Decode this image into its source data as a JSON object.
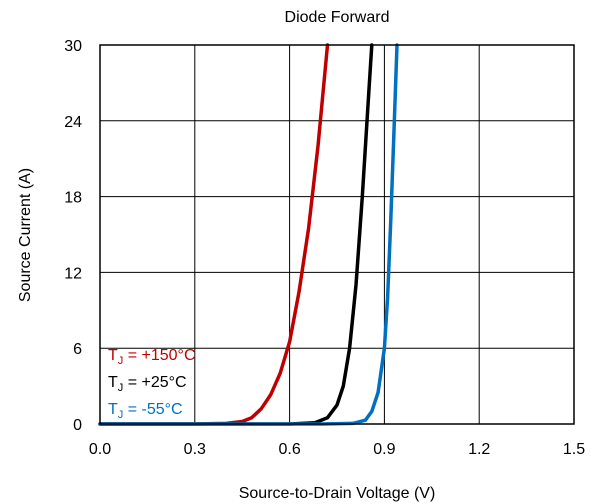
{
  "chart_data": {
    "type": "line",
    "title": "Diode Forward",
    "xlabel": "Source-to-Drain Voltage (V)",
    "ylabel": "Source Current (A)",
    "xlim": [
      0,
      1.5
    ],
    "ylim": [
      0,
      30
    ],
    "xticks": [
      "0.0",
      "0.3",
      "0.6",
      "0.9",
      "1.2",
      "1.5"
    ],
    "yticks": [
      "0",
      "6",
      "12",
      "18",
      "24",
      "30"
    ],
    "grid": true,
    "legend_position": "bottom-left",
    "series": [
      {
        "name": "T_J = +150°C",
        "label_main": "T",
        "label_sub": "J",
        "label_rest": " = +150°C",
        "color": "#c00000",
        "x": [
          0.0,
          0.3,
          0.4,
          0.45,
          0.48,
          0.51,
          0.54,
          0.57,
          0.6,
          0.63,
          0.66,
          0.69,
          0.72
        ],
        "y": [
          0.0,
          0.0,
          0.05,
          0.2,
          0.5,
          1.2,
          2.3,
          4.0,
          6.5,
          10.5,
          15.5,
          22.0,
          30.0
        ]
      },
      {
        "name": "T_J = +25°C",
        "label_main": "T",
        "label_sub": "J",
        "label_rest": " = +25°C",
        "color": "#000000",
        "x": [
          0.0,
          0.6,
          0.68,
          0.72,
          0.75,
          0.77,
          0.79,
          0.81,
          0.83,
          0.85,
          0.86
        ],
        "y": [
          0.0,
          0.0,
          0.1,
          0.5,
          1.5,
          3.0,
          6.0,
          11.0,
          18.0,
          26.0,
          30.0
        ]
      },
      {
        "name": "T_J = -55°C",
        "label_main": "T",
        "label_sub": "J",
        "label_rest": " = -55°C",
        "color": "#0070c0",
        "x": [
          0.0,
          0.7,
          0.8,
          0.84,
          0.86,
          0.88,
          0.9,
          0.91,
          0.92,
          0.93,
          0.94
        ],
        "y": [
          0.0,
          0.0,
          0.05,
          0.3,
          1.0,
          2.5,
          6.0,
          10.0,
          16.0,
          23.0,
          30.0
        ]
      }
    ]
  }
}
